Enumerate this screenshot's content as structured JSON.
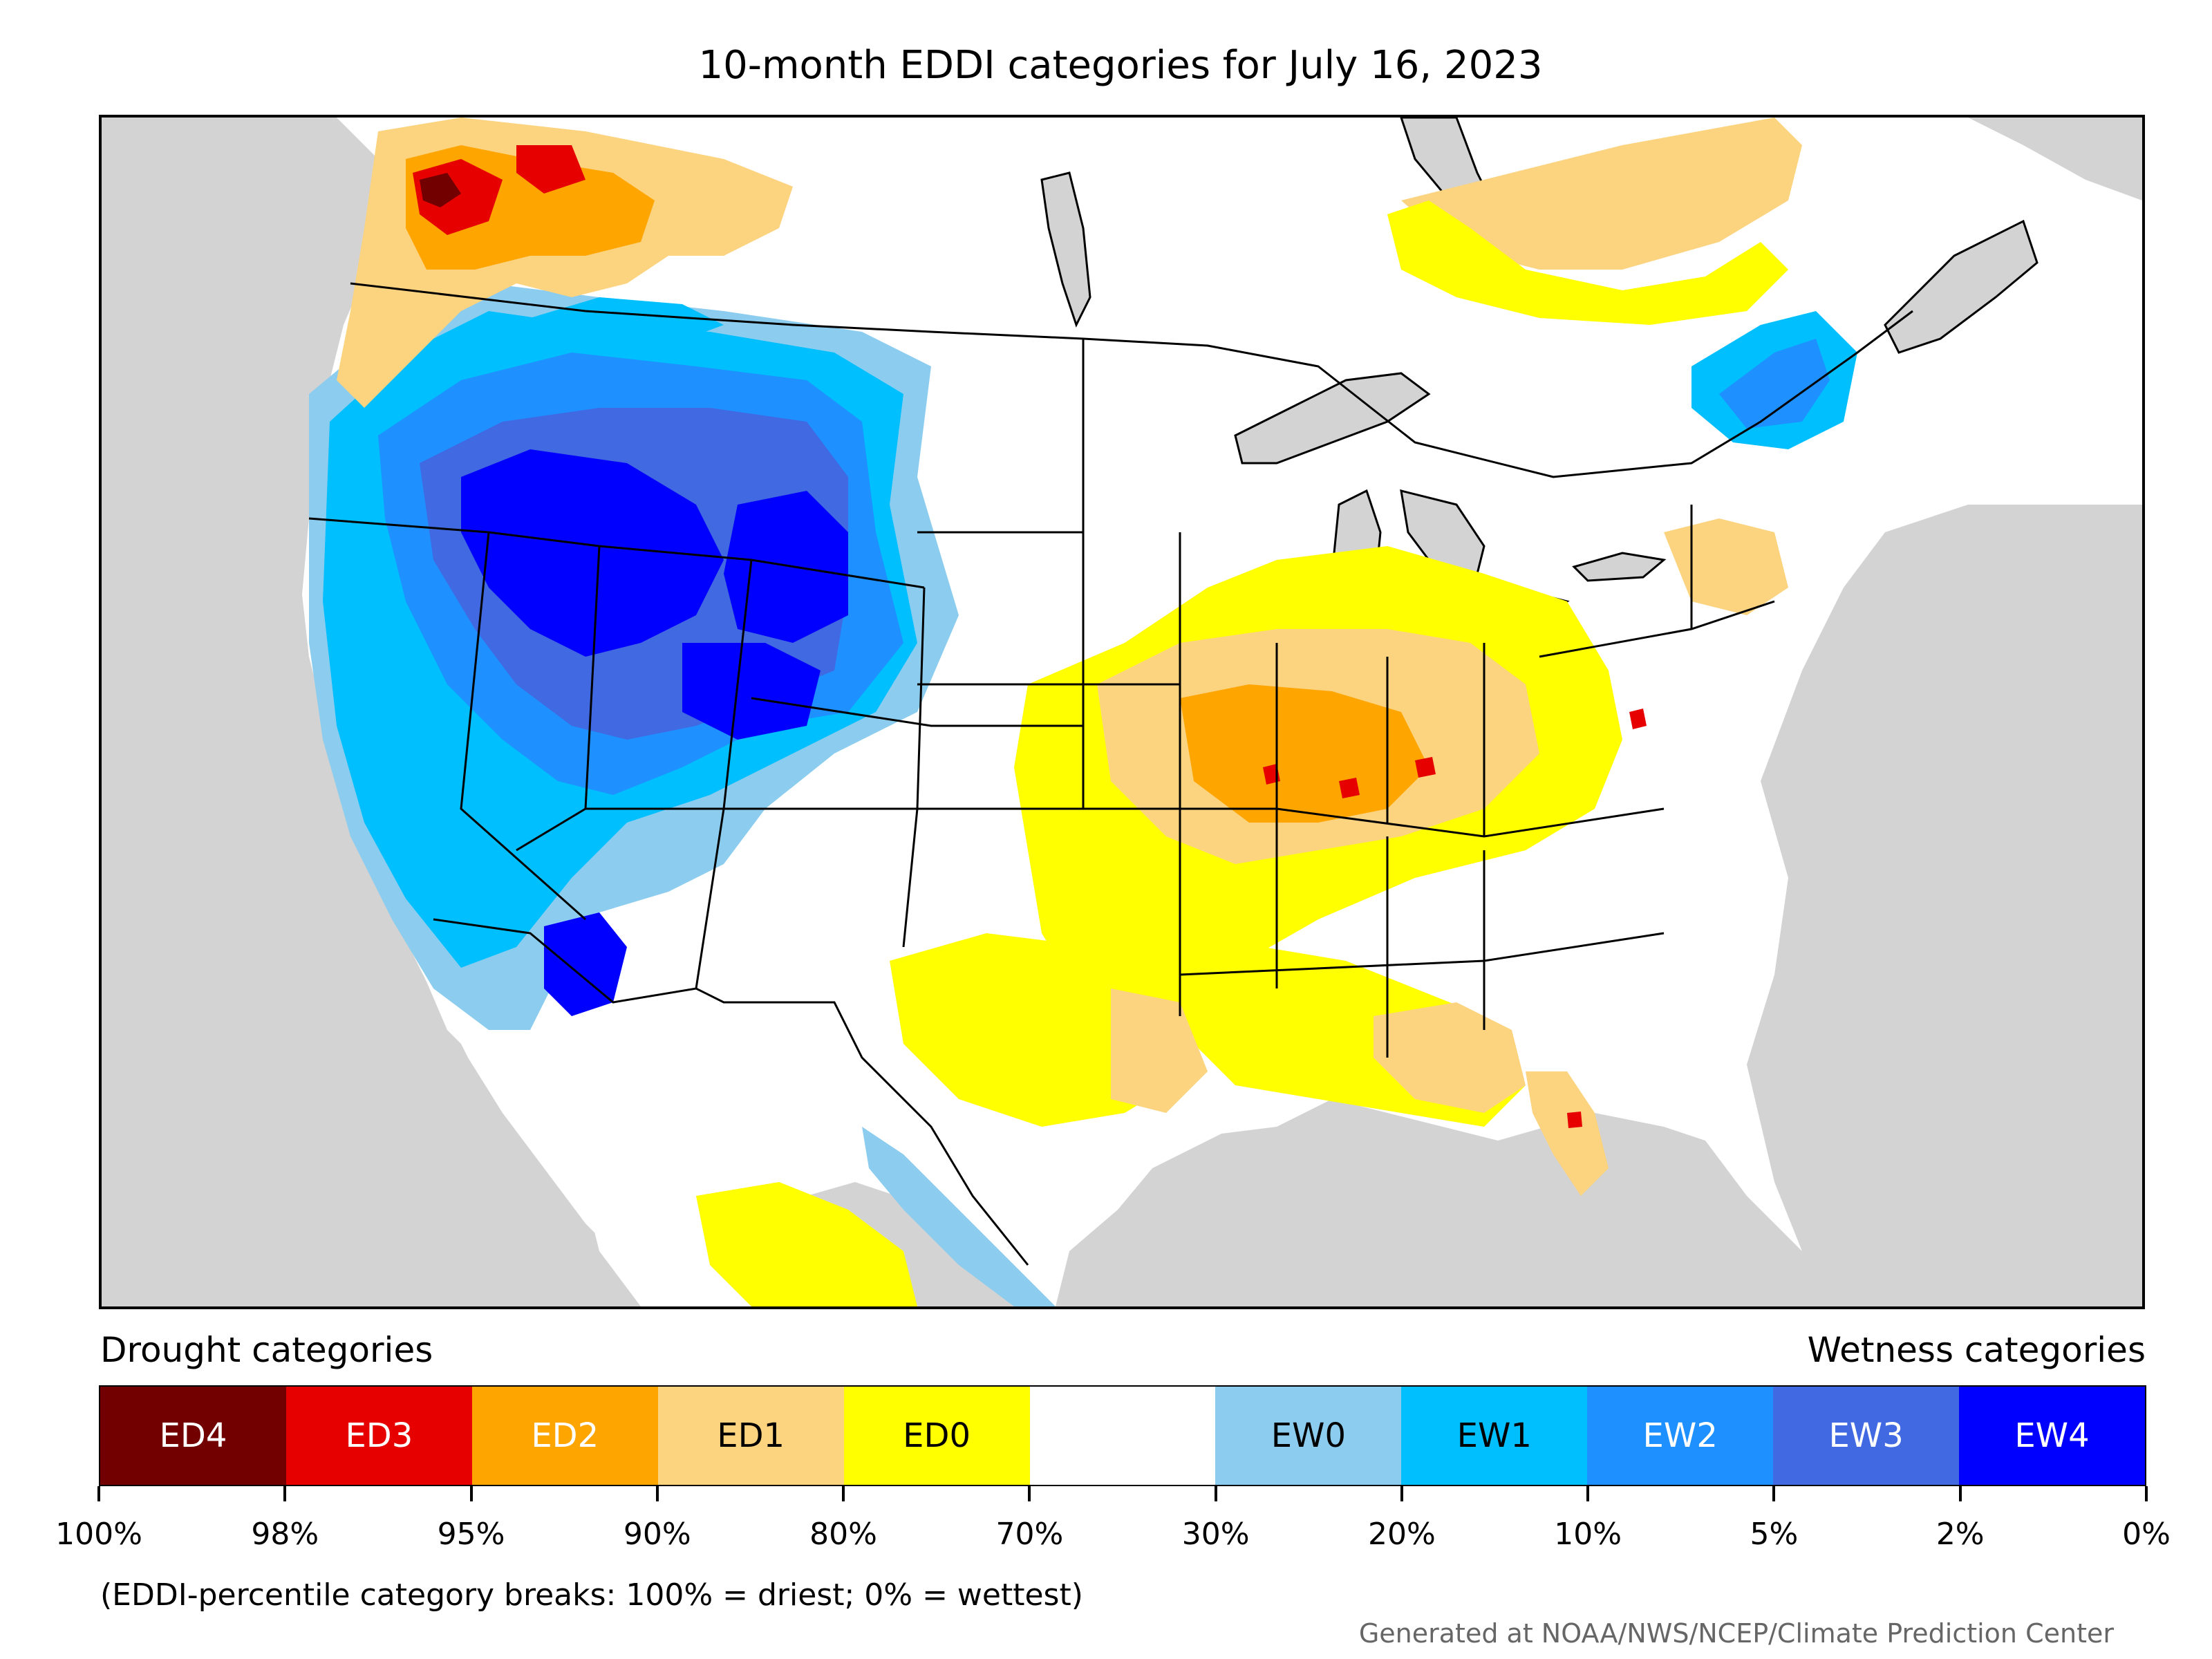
{
  "title": "10-month EDDI categories for July 16, 2023",
  "legend": {
    "drought_heading": "Drought categories",
    "wetness_heading": "Wetness categories",
    "categories": [
      {
        "label": "ED4",
        "color": "#720000",
        "text_color": "#ffffff"
      },
      {
        "label": "ED3",
        "color": "#e60000",
        "text_color": "#ffffff"
      },
      {
        "label": "ED2",
        "color": "#ffa500",
        "text_color": "#ffffff"
      },
      {
        "label": "ED1",
        "color": "#fcd37f",
        "text_color": "#000000"
      },
      {
        "label": "ED0",
        "color": "#ffff00",
        "text_color": "#000000"
      },
      {
        "label": "",
        "color": "#ffffff",
        "text_color": "#000000"
      },
      {
        "label": "EW0",
        "color": "#8ccdef",
        "text_color": "#000000"
      },
      {
        "label": "EW1",
        "color": "#00bfff",
        "text_color": "#000000"
      },
      {
        "label": "EW2",
        "color": "#1e90ff",
        "text_color": "#ffffff"
      },
      {
        "label": "EW3",
        "color": "#4169e1",
        "text_color": "#ffffff"
      },
      {
        "label": "EW4",
        "color": "#0000ff",
        "text_color": "#ffffff"
      }
    ],
    "breaks": [
      "100%",
      "98%",
      "95%",
      "90%",
      "80%",
      "70%",
      "30%",
      "20%",
      "10%",
      "5%",
      "2%",
      "0%"
    ]
  },
  "footnote": "(EDDI-percentile category breaks: 100% = driest; 0% = wettest)",
  "credit": "Generated at NOAA/NWS/NCEP/Climate Prediction Center",
  "map": {
    "background_color": "#d3d3d3",
    "land_color": "#ffffff",
    "border_color": "#000000"
  }
}
